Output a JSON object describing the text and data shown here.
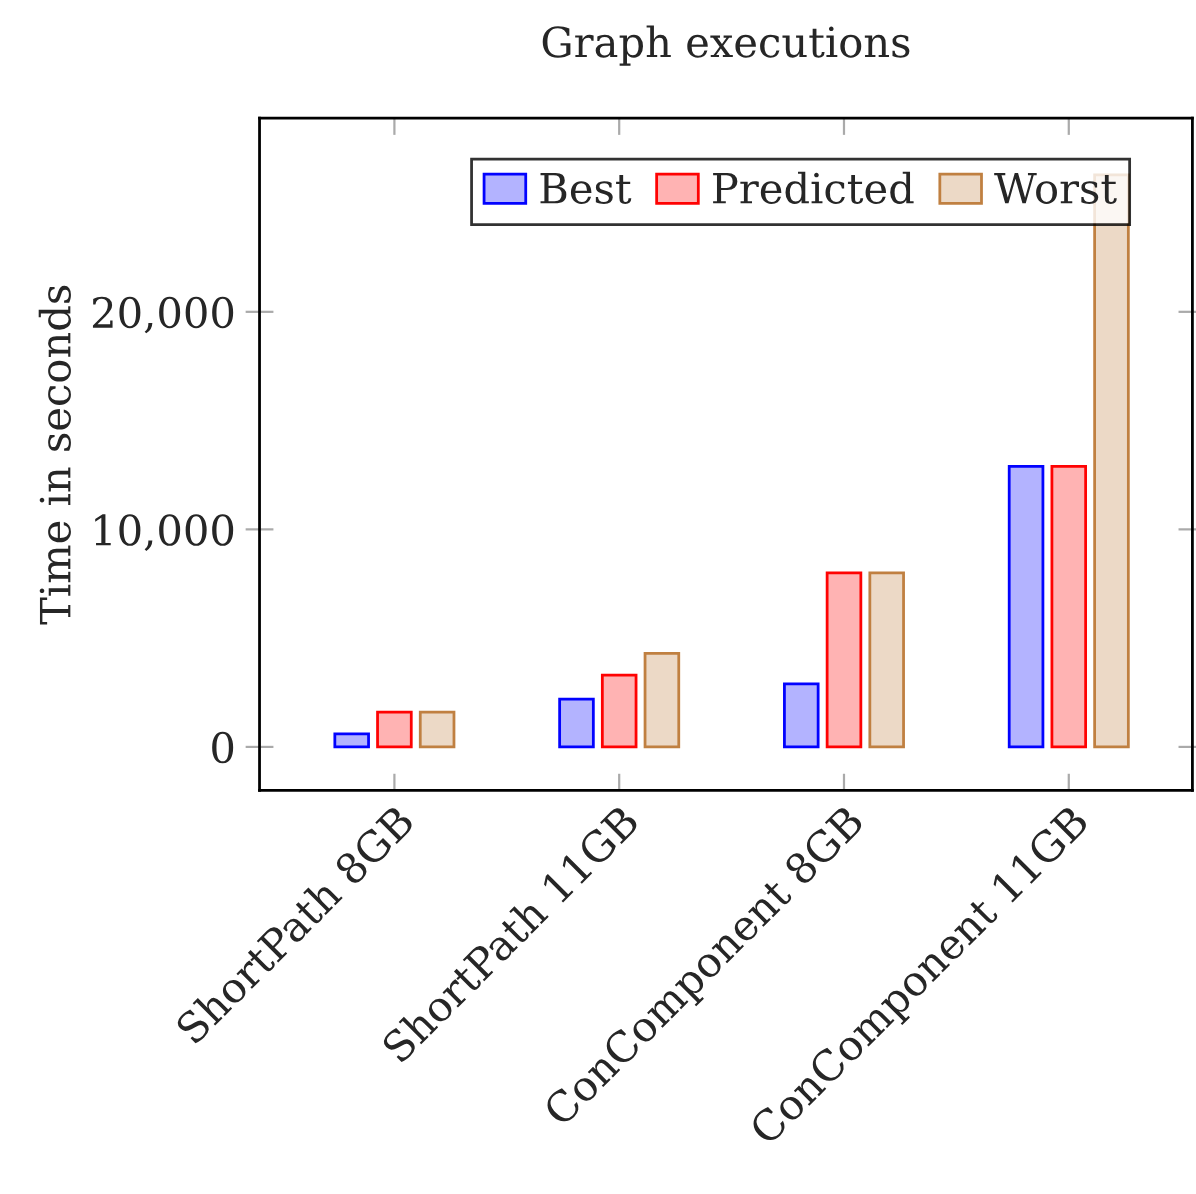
{
  "chart_data": {
    "type": "bar",
    "title": "Graph executions",
    "ylabel": "Time in seconds",
    "categories": [
      "ShortPath 8GB",
      "ShortPath 11GB",
      "ConComponent 8GB",
      "ConComponent 11GB"
    ],
    "series": [
      {
        "name": "Best",
        "color": "#b3b3ff",
        "values": [
          600,
          2200,
          2900,
          12900
        ]
      },
      {
        "name": "Predicted",
        "color": "#ffb3b3",
        "values": [
          1600,
          3300,
          8000,
          12900
        ]
      },
      {
        "name": "Worst",
        "color": "#ecd9c6",
        "values": [
          1600,
          4300,
          8000,
          26300
        ]
      }
    ],
    "ylim": [
      -2000,
      28900
    ],
    "yticks": [
      {
        "value": 0,
        "label": "0"
      },
      {
        "value": 10000,
        "label": "10,000"
      },
      {
        "value": 20000,
        "label": "20,000"
      }
    ],
    "grid": false,
    "legend": "top"
  }
}
